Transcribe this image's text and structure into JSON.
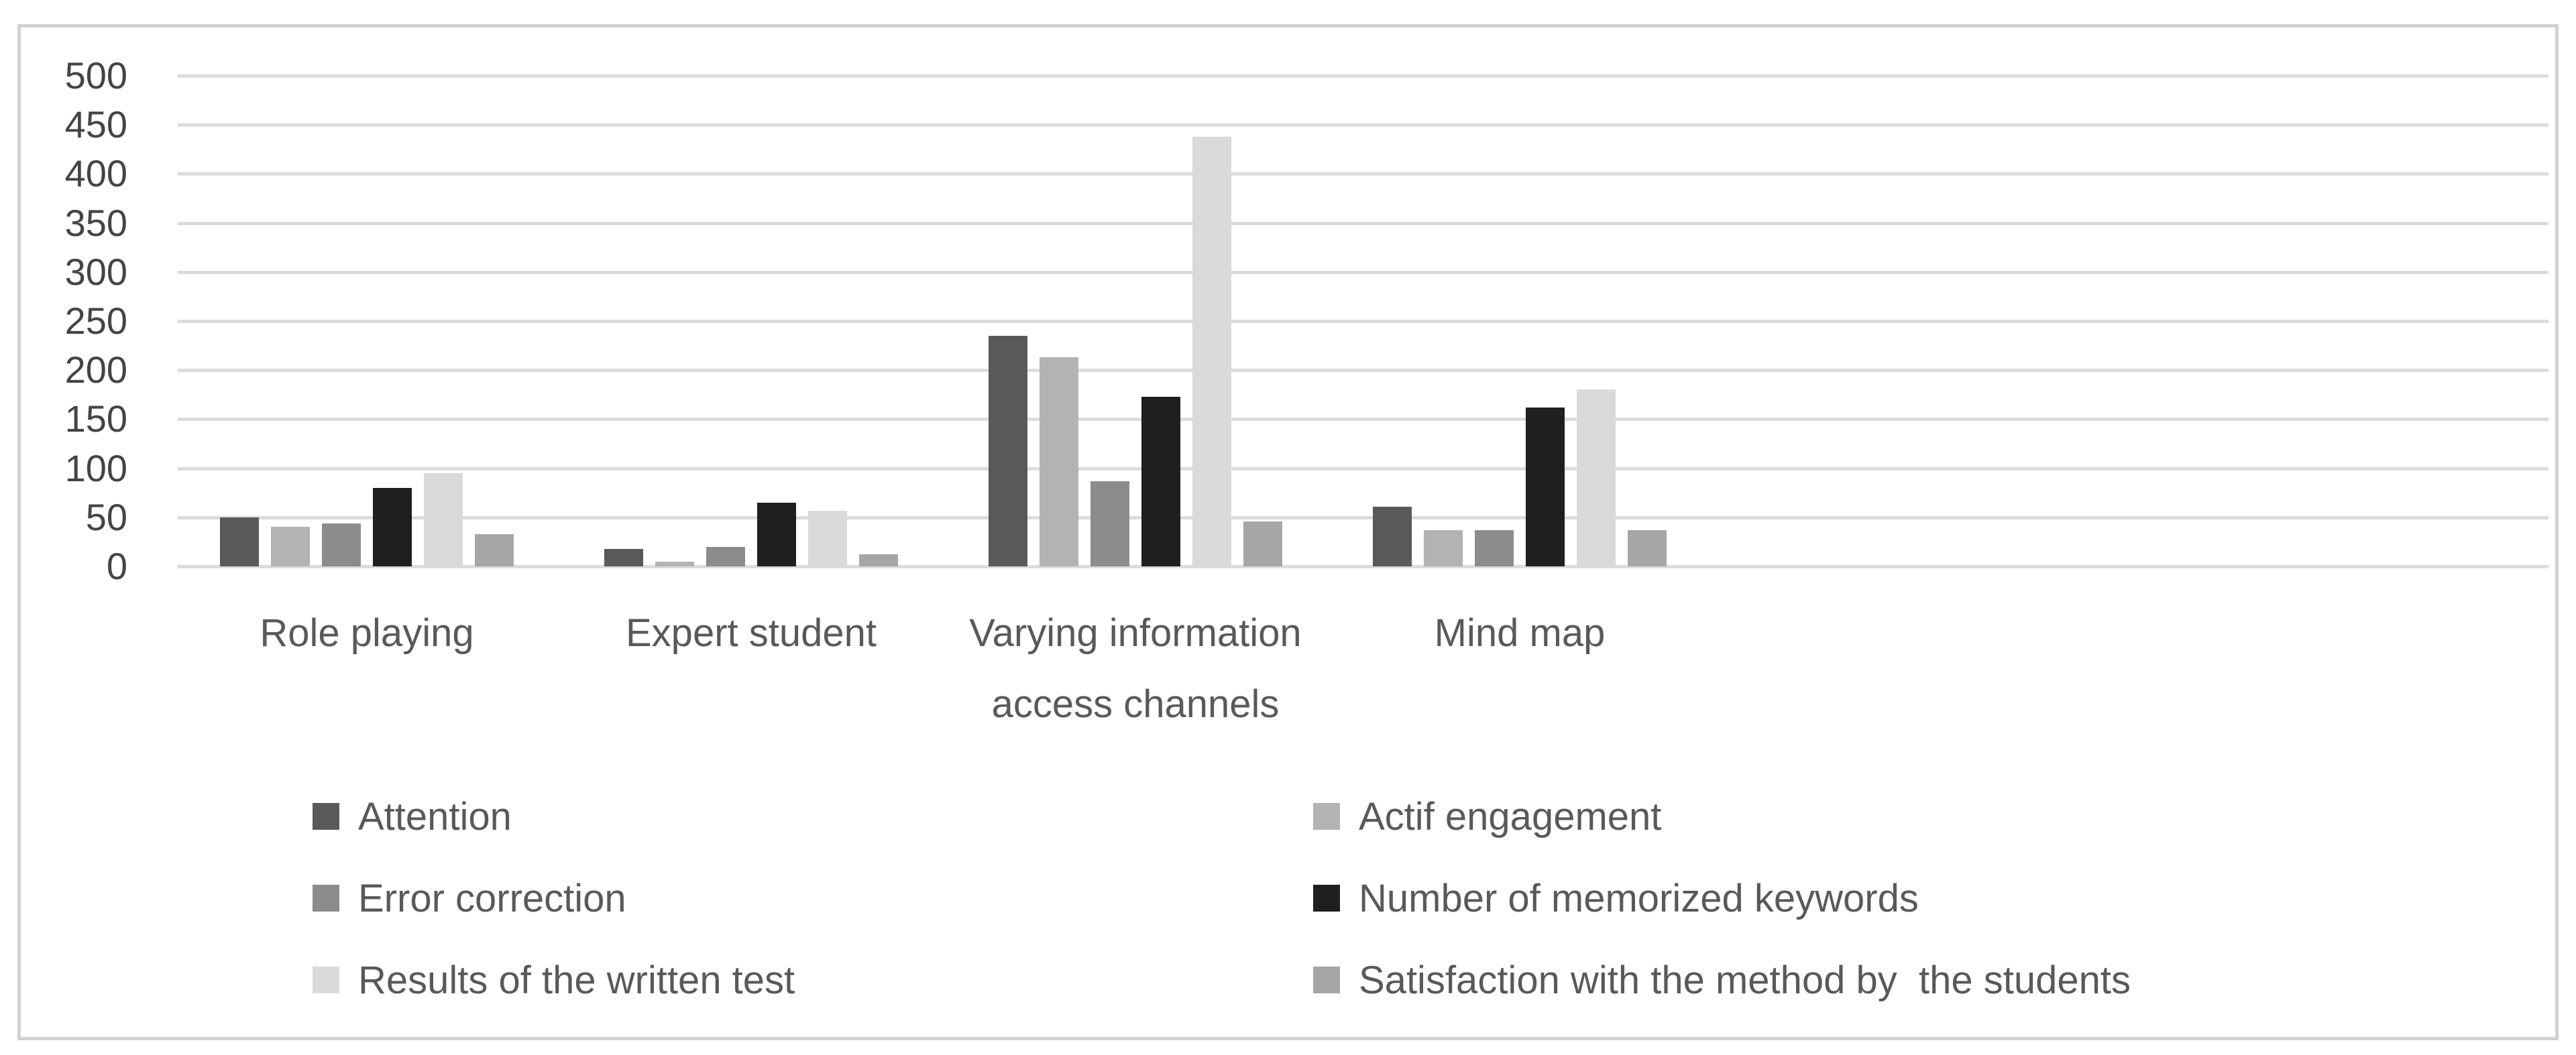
{
  "chart_data": {
    "type": "bar",
    "title": "",
    "xlabel": "",
    "ylabel": "",
    "categories": [
      "Role playing",
      "Expert student",
      "Varying information access channels",
      "Mind map"
    ],
    "series": [
      {
        "name": "Attention",
        "color": "#595959",
        "values": [
          50,
          18,
          235,
          61
        ]
      },
      {
        "name": "Actif engagement",
        "color": "#b3b3b3",
        "values": [
          40,
          5,
          213,
          37
        ]
      },
      {
        "name": "Error correction",
        "color": "#8c8c8c",
        "values": [
          44,
          20,
          87,
          37
        ]
      },
      {
        "name": "Number of memorized keywords",
        "color": "#1f1f1f",
        "values": [
          80,
          65,
          173,
          162
        ]
      },
      {
        "name": "Results of the written test",
        "color": "#dadada",
        "values": [
          95,
          57,
          438,
          180
        ]
      },
      {
        "name": "Satisfaction with the method by  the students",
        "color": "#a6a6a6",
        "values": [
          33,
          12,
          46,
          37
        ]
      }
    ],
    "ylim": [
      0,
      500
    ],
    "y_ticks": [
      0,
      50,
      100,
      150,
      200,
      250,
      300,
      350,
      400,
      450,
      500
    ],
    "grid": true,
    "legend_position": "bottom",
    "legend_columns": 2,
    "background_color": "#ffffff",
    "frame_border_color": "#d2d2d2",
    "gridline_color": "#dcdcdc",
    "tick_text_color": "#444444",
    "label_text_color": "#595959"
  }
}
